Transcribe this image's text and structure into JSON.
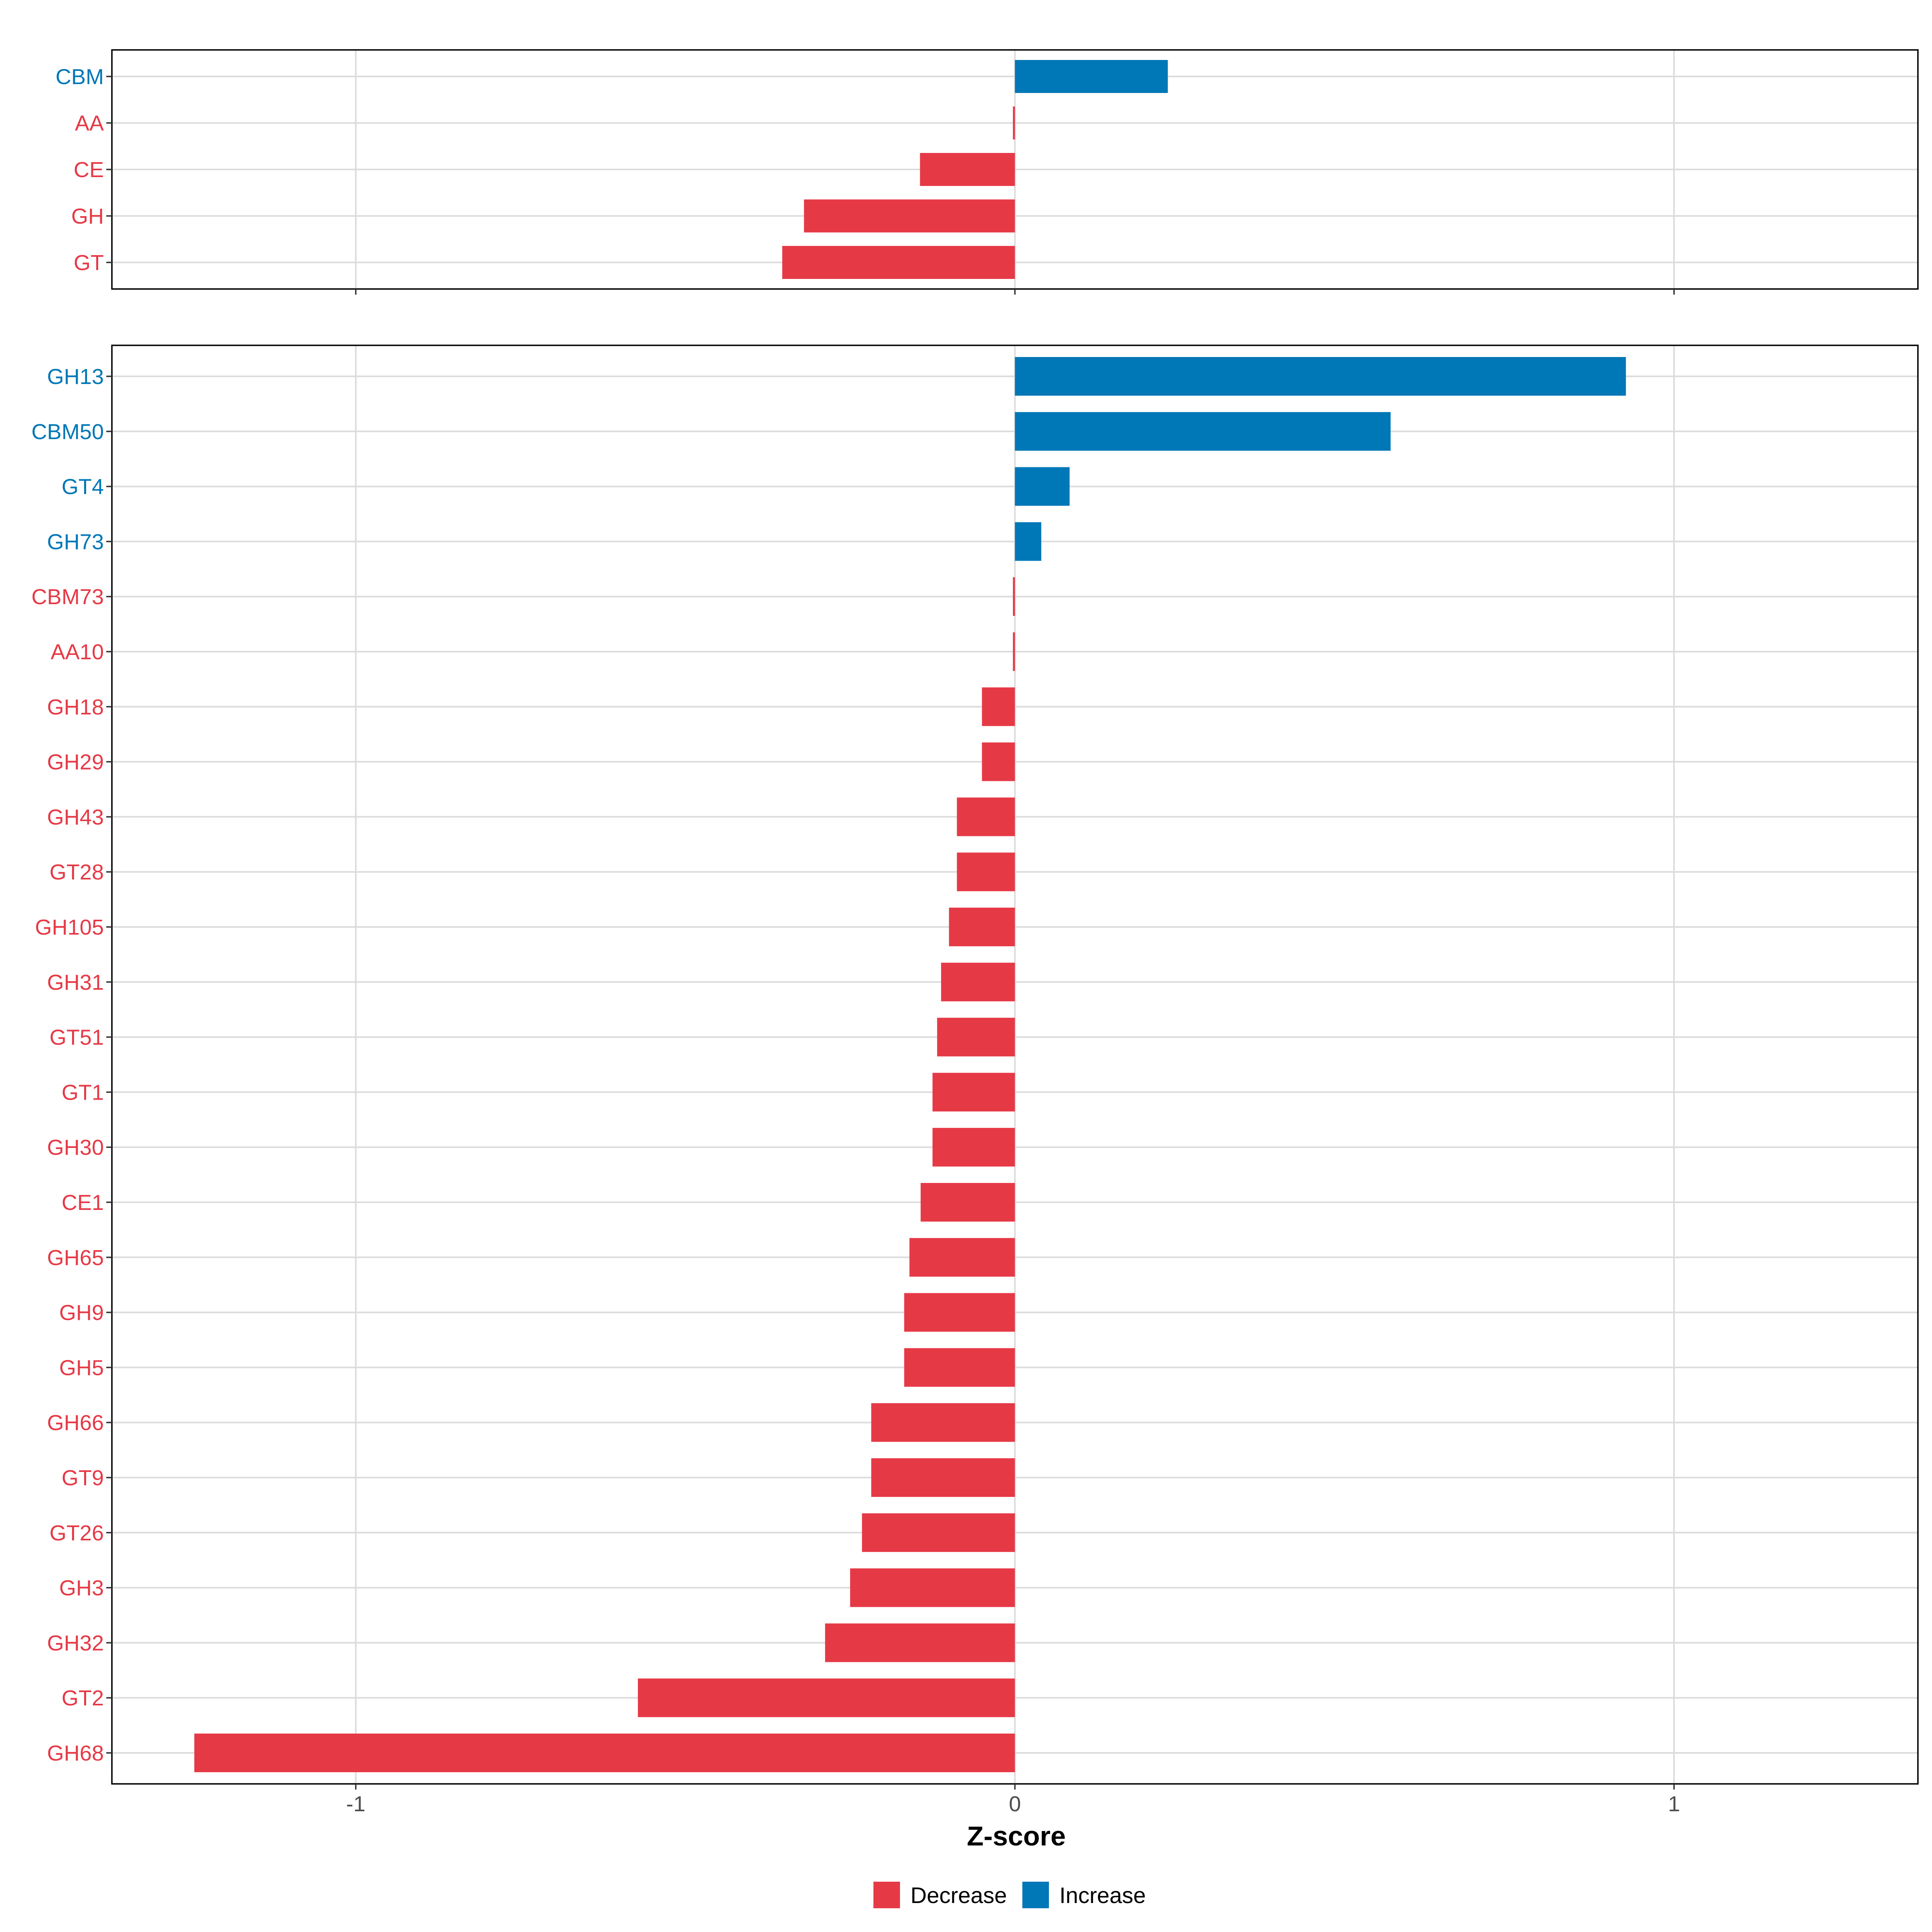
{
  "chart_data": {
    "type": "bar",
    "orientation": "horizontal",
    "xlabel": "Z-score",
    "xlim": [
      -1.37,
      1.37
    ],
    "xticks": [
      -1,
      0,
      1
    ],
    "xtick_labels": [
      "-1",
      "0",
      "1"
    ],
    "colors": {
      "Decrease": "#e63946",
      "Increase": "#0077b6"
    },
    "legend": {
      "position": "bottom",
      "entries": [
        {
          "label": "Decrease",
          "color": "#e63946"
        },
        {
          "label": "Increase",
          "color": "#0077b6"
        }
      ]
    },
    "panels": [
      {
        "name": "top",
        "categories": [
          "CBM",
          "AA",
          "CE",
          "GH",
          "GT"
        ],
        "values": [
          0.232,
          -0.003,
          -0.144,
          -0.32,
          -0.353
        ],
        "directions": [
          "Increase",
          "Decrease",
          "Decrease",
          "Decrease",
          "Decrease"
        ]
      },
      {
        "name": "bottom",
        "categories": [
          "GH13",
          "CBM50",
          "GT4",
          "GH73",
          "CBM73",
          "AA10",
          "GH18",
          "GH29",
          "GH43",
          "GT28",
          "GH105",
          "GH31",
          "GT51",
          "GT1",
          "GH30",
          "CE1",
          "GH65",
          "GH9",
          "GH5",
          "GH66",
          "GT9",
          "GT26",
          "GH3",
          "GH32",
          "GT2",
          "GH68"
        ],
        "values": [
          0.927,
          0.57,
          0.083,
          0.04,
          -0.003,
          -0.003,
          -0.05,
          -0.05,
          -0.088,
          -0.088,
          -0.1,
          -0.112,
          -0.118,
          -0.125,
          -0.125,
          -0.143,
          -0.16,
          -0.168,
          -0.168,
          -0.218,
          -0.218,
          -0.232,
          -0.25,
          -0.288,
          -0.572,
          -1.245
        ],
        "directions": [
          "Increase",
          "Increase",
          "Increase",
          "Increase",
          "Decrease",
          "Decrease",
          "Decrease",
          "Decrease",
          "Decrease",
          "Decrease",
          "Decrease",
          "Decrease",
          "Decrease",
          "Decrease",
          "Decrease",
          "Decrease",
          "Decrease",
          "Decrease",
          "Decrease",
          "Decrease",
          "Decrease",
          "Decrease",
          "Decrease",
          "Decrease",
          "Decrease",
          "Decrease"
        ]
      }
    ]
  }
}
